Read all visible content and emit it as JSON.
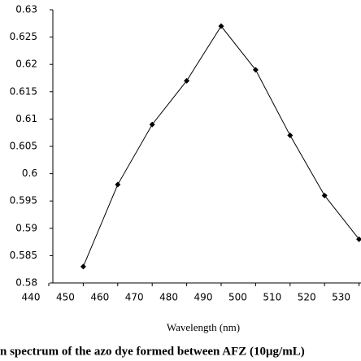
{
  "chart_data": {
    "type": "line",
    "x_label": "Wavelength (nm)",
    "caption": "n spectrum of the azo dye formed between AFZ (10μg/mL)",
    "x": [
      450,
      460,
      470,
      480,
      490,
      500,
      510,
      520,
      530
    ],
    "series": [
      {
        "color": "#000000",
        "values": [
          0.583,
          0.598,
          0.609,
          0.617,
          0.627,
          0.619,
          0.607,
          0.596,
          0.588
        ]
      }
    ],
    "xlim": [
      440,
      530
    ],
    "xticks": [
      440,
      450,
      460,
      470,
      480,
      490,
      500,
      510,
      520,
      530
    ],
    "ylim": [
      0.58,
      0.63
    ],
    "yticks": [
      0.58,
      0.585,
      0.59,
      0.595,
      0.6,
      0.605,
      0.61,
      0.615,
      0.62,
      0.625,
      0.63
    ],
    "grid": false
  }
}
